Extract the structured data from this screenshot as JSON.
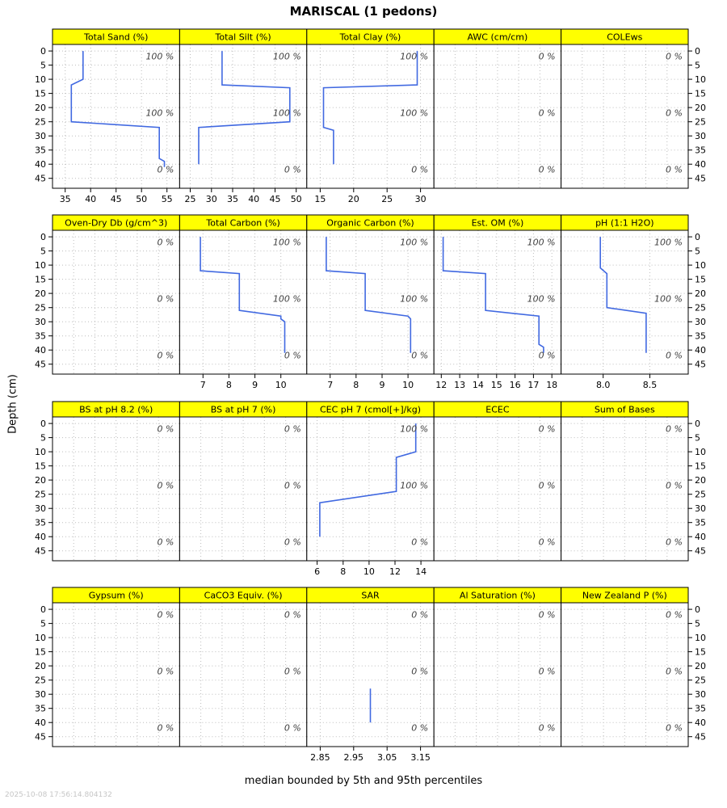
{
  "title": "MARISCAL (1 pedons)",
  "y_axis_label": "Depth (cm)",
  "caption": "median bounded by 5th and 95th percentiles",
  "timestamp": "2025-10-08 17:56:14.804132",
  "colors": {
    "line": "#4169E1",
    "strip_bg": "#FFFF00",
    "strip_text": "#000000",
    "grid": "#BDBDBD",
    "border": "#000000",
    "annotation": "#404040"
  },
  "chart_data": {
    "type": "line",
    "orientation": "depth-profile",
    "layout": {
      "rows": 4,
      "cols": 5
    },
    "grid": true,
    "depth_ticks": [
      0,
      5,
      10,
      15,
      20,
      25,
      30,
      35,
      40,
      45
    ],
    "depth_range": [
      -2.3,
      48.5
    ],
    "panels": [
      {
        "name": "total-sand",
        "title": "Total Sand (%)",
        "x_range": [
          32.5,
          57.5
        ],
        "x_tick_values": [
          35,
          40,
          45,
          50,
          55
        ],
        "x_tick_labels": [
          "35",
          "40",
          "45",
          "50",
          "55"
        ],
        "line": [
          [
            38.5,
            0
          ],
          [
            38.5,
            10
          ],
          [
            36.2,
            12
          ],
          [
            36.2,
            25
          ],
          [
            53.5,
            27
          ],
          [
            53.5,
            38
          ],
          [
            54.5,
            39
          ],
          [
            54.5,
            41
          ]
        ],
        "annotations": [
          {
            "depth": 1.8,
            "label": "100 %"
          },
          {
            "depth": 21.8,
            "label": "100 %"
          },
          {
            "depth": 41.8,
            "label": "0 %"
          }
        ]
      },
      {
        "name": "total-silt",
        "title": "Total Silt (%)",
        "x_range": [
          22.5,
          52.5
        ],
        "x_tick_values": [
          25,
          30,
          35,
          40,
          45,
          50
        ],
        "x_tick_labels": [
          "25",
          "30",
          "35",
          "40",
          "45",
          "50"
        ],
        "line": [
          [
            32.5,
            0
          ],
          [
            32.5,
            12
          ],
          [
            48.5,
            13
          ],
          [
            48.5,
            25
          ],
          [
            27,
            27
          ],
          [
            27,
            40
          ]
        ],
        "annotations": [
          {
            "depth": 1.8,
            "label": "100 %"
          },
          {
            "depth": 21.8,
            "label": "100 %"
          },
          {
            "depth": 41.8,
            "label": "0 %"
          }
        ]
      },
      {
        "name": "total-clay",
        "title": "Total Clay (%)",
        "x_range": [
          13,
          32
        ],
        "x_tick_values": [
          15,
          20,
          25,
          30
        ],
        "x_tick_labels": [
          "15",
          "20",
          "25",
          "30"
        ],
        "line": [
          [
            29.5,
            0
          ],
          [
            29.5,
            12
          ],
          [
            15.5,
            13
          ],
          [
            15.5,
            27
          ],
          [
            17,
            28
          ],
          [
            17,
            40
          ]
        ],
        "annotations": [
          {
            "depth": 1.8,
            "label": "100 %"
          },
          {
            "depth": 21.8,
            "label": "100 %"
          },
          {
            "depth": 41.8,
            "label": "0 %"
          }
        ]
      },
      {
        "name": "awc",
        "title": "AWC (cm/cm)",
        "x_range": null,
        "x_tick_values": [],
        "x_tick_labels": [],
        "line": [],
        "annotations": [
          {
            "depth": 1.8,
            "label": "0 %"
          },
          {
            "depth": 21.8,
            "label": "0 %"
          },
          {
            "depth": 41.8,
            "label": "0 %"
          }
        ]
      },
      {
        "name": "colews",
        "title": "COLEws",
        "x_range": null,
        "x_tick_values": [],
        "x_tick_labels": [],
        "line": [],
        "annotations": [
          {
            "depth": 1.8,
            "label": "0 %"
          },
          {
            "depth": 21.8,
            "label": "0 %"
          },
          {
            "depth": 41.8,
            "label": "0 %"
          }
        ]
      },
      {
        "name": "oven-dry-db",
        "title": "Oven-Dry Db (g/cm^3)",
        "x_range": null,
        "x_tick_values": [],
        "x_tick_labels": [],
        "line": [],
        "annotations": [
          {
            "depth": 1.8,
            "label": "0 %"
          },
          {
            "depth": 21.8,
            "label": "0 %"
          },
          {
            "depth": 41.8,
            "label": "0 %"
          }
        ]
      },
      {
        "name": "total-carbon",
        "title": "Total Carbon (%)",
        "x_range": [
          6.1,
          11.0
        ],
        "x_tick_values": [
          7,
          8,
          9,
          10
        ],
        "x_tick_labels": [
          "7",
          "8",
          "9",
          "10"
        ],
        "line": [
          [
            6.9,
            0
          ],
          [
            6.9,
            12
          ],
          [
            8.4,
            13
          ],
          [
            8.4,
            26
          ],
          [
            10.0,
            28
          ],
          [
            10.0,
            29
          ],
          [
            10.15,
            30
          ],
          [
            10.15,
            41
          ]
        ],
        "annotations": [
          {
            "depth": 1.8,
            "label": "100 %"
          },
          {
            "depth": 21.8,
            "label": "100 %"
          },
          {
            "depth": 41.8,
            "label": "0 %"
          }
        ]
      },
      {
        "name": "organic-carbon",
        "title": "Organic Carbon (%)",
        "x_range": [
          6.1,
          11.0
        ],
        "x_tick_values": [
          7,
          8,
          9,
          10
        ],
        "x_tick_labels": [
          "7",
          "8",
          "9",
          "10"
        ],
        "line": [
          [
            6.85,
            0
          ],
          [
            6.85,
            12
          ],
          [
            8.35,
            13
          ],
          [
            8.35,
            26
          ],
          [
            10.0,
            28
          ],
          [
            10.1,
            29
          ],
          [
            10.1,
            41
          ]
        ],
        "annotations": [
          {
            "depth": 1.8,
            "label": "100 %"
          },
          {
            "depth": 21.8,
            "label": "100 %"
          },
          {
            "depth": 41.8,
            "label": "0 %"
          }
        ]
      },
      {
        "name": "est-om",
        "title": "Est. OM (%)",
        "x_range": [
          11.6,
          18.5
        ],
        "x_tick_values": [
          12,
          13,
          14,
          15,
          16,
          17,
          18
        ],
        "x_tick_labels": [
          "12",
          "13",
          "14",
          "15",
          "16",
          "17",
          "18"
        ],
        "line": [
          [
            12.1,
            0
          ],
          [
            12.1,
            12
          ],
          [
            14.4,
            13
          ],
          [
            14.4,
            26
          ],
          [
            17.3,
            28
          ],
          [
            17.3,
            38
          ],
          [
            17.55,
            39
          ],
          [
            17.55,
            41
          ]
        ],
        "annotations": [
          {
            "depth": 1.8,
            "label": "100 %"
          },
          {
            "depth": 21.8,
            "label": "100 %"
          },
          {
            "depth": 41.8,
            "label": "0 %"
          }
        ]
      },
      {
        "name": "ph-1-1-h2o",
        "title": "pH (1:1 H2O)",
        "x_range": [
          7.55,
          8.91
        ],
        "x_tick_values": [
          8.0,
          8.5
        ],
        "x_tick_labels": [
          "8.0",
          "8.5"
        ],
        "line": [
          [
            7.97,
            0
          ],
          [
            7.97,
            11
          ],
          [
            8.04,
            13
          ],
          [
            8.04,
            25
          ],
          [
            8.46,
            27
          ],
          [
            8.46,
            41
          ]
        ],
        "annotations": [
          {
            "depth": 1.8,
            "label": "100 %"
          },
          {
            "depth": 21.8,
            "label": "100 %"
          },
          {
            "depth": 41.8,
            "label": "0 %"
          }
        ]
      },
      {
        "name": "bs-at-ph-8-2",
        "title": "BS at pH 8.2 (%)",
        "x_range": null,
        "x_tick_values": [],
        "x_tick_labels": [],
        "line": [],
        "annotations": [
          {
            "depth": 1.8,
            "label": "0 %"
          },
          {
            "depth": 21.8,
            "label": "0 %"
          },
          {
            "depth": 41.8,
            "label": "0 %"
          }
        ]
      },
      {
        "name": "bs-at-ph-7",
        "title": "BS at pH 7 (%)",
        "x_range": null,
        "x_tick_values": [],
        "x_tick_labels": [],
        "line": [],
        "annotations": [
          {
            "depth": 1.8,
            "label": "0 %"
          },
          {
            "depth": 21.8,
            "label": "0 %"
          },
          {
            "depth": 41.8,
            "label": "0 %"
          }
        ]
      },
      {
        "name": "cec-ph-7",
        "title": "CEC pH 7 (cmol[+]/kg)",
        "x_range": [
          5.2,
          15.0
        ],
        "x_tick_values": [
          6,
          8,
          10,
          12,
          14
        ],
        "x_tick_labels": [
          "6",
          "8",
          "10",
          "12",
          "14"
        ],
        "line": [
          [
            13.6,
            0
          ],
          [
            13.6,
            10
          ],
          [
            12.1,
            12
          ],
          [
            12.1,
            24
          ],
          [
            6.2,
            28
          ],
          [
            6.2,
            40
          ]
        ],
        "annotations": [
          {
            "depth": 1.8,
            "label": "100 %"
          },
          {
            "depth": 21.8,
            "label": "100 %"
          },
          {
            "depth": 41.8,
            "label": "0 %"
          }
        ]
      },
      {
        "name": "ecec",
        "title": "ECEC",
        "x_range": null,
        "x_tick_values": [],
        "x_tick_labels": [],
        "line": [],
        "annotations": [
          {
            "depth": 1.8,
            "label": "0 %"
          },
          {
            "depth": 21.8,
            "label": "0 %"
          },
          {
            "depth": 41.8,
            "label": "0 %"
          }
        ]
      },
      {
        "name": "sum-of-bases",
        "title": "Sum of Bases",
        "x_range": null,
        "x_tick_values": [],
        "x_tick_labels": [],
        "line": [],
        "annotations": [
          {
            "depth": 1.8,
            "label": "0 %"
          },
          {
            "depth": 21.8,
            "label": "0 %"
          },
          {
            "depth": 41.8,
            "label": "0 %"
          }
        ]
      },
      {
        "name": "gypsum",
        "title": "Gypsum (%)",
        "x_range": null,
        "x_tick_values": [],
        "x_tick_labels": [],
        "line": [],
        "annotations": [
          {
            "depth": 1.8,
            "label": "0 %"
          },
          {
            "depth": 21.8,
            "label": "0 %"
          },
          {
            "depth": 41.8,
            "label": "0 %"
          }
        ]
      },
      {
        "name": "caco3-equiv",
        "title": "CaCO3 Equiv. (%)",
        "x_range": null,
        "x_tick_values": [],
        "x_tick_labels": [],
        "line": [],
        "annotations": [
          {
            "depth": 1.8,
            "label": "0 %"
          },
          {
            "depth": 21.8,
            "label": "0 %"
          },
          {
            "depth": 41.8,
            "label": "0 %"
          }
        ]
      },
      {
        "name": "sar",
        "title": "SAR",
        "x_range": [
          2.81,
          3.19
        ],
        "x_tick_values": [
          2.85,
          2.95,
          3.05,
          3.15
        ],
        "x_tick_labels": [
          "2.85",
          "2.95",
          "3.05",
          "3.15"
        ],
        "line": [
          [
            3.0,
            28
          ],
          [
            3.0,
            40
          ]
        ],
        "annotations": [
          {
            "depth": 1.8,
            "label": "0 %"
          },
          {
            "depth": 21.8,
            "label": "0 %"
          },
          {
            "depth": 41.8,
            "label": "0 %"
          }
        ]
      },
      {
        "name": "al-saturation",
        "title": "Al Saturation (%)",
        "x_range": null,
        "x_tick_values": [],
        "x_tick_labels": [],
        "line": [],
        "annotations": [
          {
            "depth": 1.8,
            "label": "0 %"
          },
          {
            "depth": 21.8,
            "label": "0 %"
          },
          {
            "depth": 41.8,
            "label": "0 %"
          }
        ]
      },
      {
        "name": "new-zealand-p",
        "title": "New Zealand P (%)",
        "x_range": null,
        "x_tick_values": [],
        "x_tick_labels": [],
        "line": [],
        "annotations": [
          {
            "depth": 1.8,
            "label": "0 %"
          },
          {
            "depth": 21.8,
            "label": "0 %"
          },
          {
            "depth": 41.8,
            "label": "0 %"
          }
        ]
      }
    ]
  }
}
